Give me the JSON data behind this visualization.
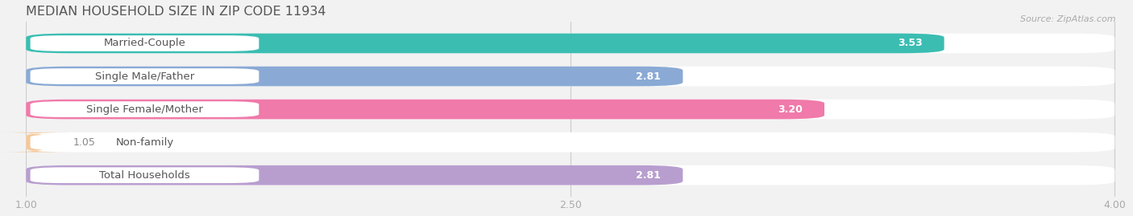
{
  "title": "MEDIAN HOUSEHOLD SIZE IN ZIP CODE 11934",
  "source": "Source: ZipAtlas.com",
  "categories": [
    "Married-Couple",
    "Single Male/Father",
    "Single Female/Mother",
    "Non-family",
    "Total Households"
  ],
  "values": [
    3.53,
    2.81,
    3.2,
    1.05,
    2.81
  ],
  "bar_colors": [
    "#3bbdb2",
    "#8aaad5",
    "#f07aaa",
    "#f5c89a",
    "#b89ecf"
  ],
  "xlim": [
    1.0,
    4.0
  ],
  "xticks": [
    1.0,
    2.5,
    4.0
  ],
  "background_color": "#f2f2f2",
  "title_fontsize": 11.5,
  "label_fontsize": 9.5,
  "value_fontsize": 9
}
